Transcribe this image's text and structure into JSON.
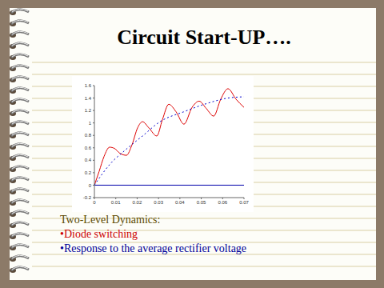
{
  "title": {
    "text": "Circuit Start-UP….",
    "color": "#000000"
  },
  "chart_data": {
    "type": "line",
    "xlim": [
      0,
      0.07
    ],
    "xticks": [
      0,
      0.01,
      0.02,
      0.03,
      0.04,
      0.05,
      0.06,
      0.07
    ],
    "ylim": [
      -0.2,
      1.6
    ],
    "yticks": [
      -0.2,
      0,
      0.2,
      0.4,
      0.6,
      0.8,
      1,
      1.2,
      1.4,
      1.6
    ],
    "grid": false,
    "series": [
      {
        "color": "#dd0000",
        "line_style": "solid",
        "x": [
          0,
          0.0022,
          0.0045,
          0.0071,
          0.0094,
          0.012,
          0.015,
          0.0176,
          0.0202,
          0.0225,
          0.0255,
          0.0292,
          0.0318,
          0.0348,
          0.0382,
          0.0419,
          0.0457,
          0.049,
          0.0524,
          0.0558,
          0.0591,
          0.0625,
          0.0663,
          0.07
        ],
        "values": [
          0,
          0.22,
          0.46,
          0.61,
          0.59,
          0.51,
          0.48,
          0.65,
          0.92,
          1.02,
          0.92,
          0.79,
          1.05,
          1.3,
          1.18,
          0.98,
          1.25,
          1.35,
          1.23,
          1.11,
          1.38,
          1.55,
          1.38,
          1.25
        ]
      },
      {
        "color": "#0000cc",
        "line_style": "dotted",
        "x": [
          0,
          0.0071,
          0.015,
          0.0225,
          0.0307,
          0.0419,
          0.0524,
          0.0625,
          0.07
        ],
        "values": [
          0,
          0.33,
          0.58,
          0.79,
          1.02,
          1.18,
          1.31,
          1.4,
          1.42
        ]
      },
      {
        "color": "#0000aa",
        "line_style": "solid",
        "x": [
          0,
          0.07
        ],
        "values": [
          0,
          0
        ]
      }
    ]
  },
  "caption": {
    "heading": {
      "text": "Two-Level Dynamics:",
      "color": "#5c4a00"
    },
    "items": [
      {
        "text": "•Diode switching",
        "color": "#cc0000"
      },
      {
        "text": "•Response to the average rectifier voltage",
        "color": "#000099"
      }
    ]
  }
}
